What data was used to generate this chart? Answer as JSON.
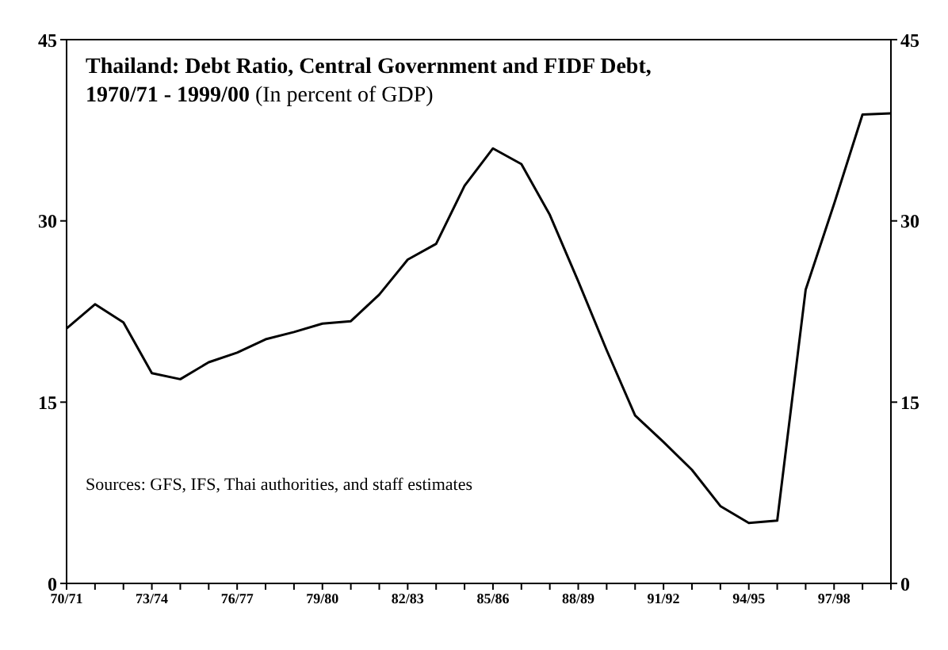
{
  "chart_data": {
    "type": "line",
    "title": "Thailand: Debt Ratio, Central Government and FIDF Debt, 1970/71 - 1999/00",
    "subtitle": "(In percent of GDP)",
    "annotations": [
      "Sources: GFS, IFS, Thai authorities, and staff estimates"
    ],
    "categories": [
      "70/71",
      null,
      null,
      "73/74",
      null,
      null,
      "76/77",
      null,
      null,
      "79/80",
      null,
      null,
      "82/83",
      null,
      null,
      "85/86",
      null,
      null,
      "88/89",
      null,
      null,
      "91/92",
      null,
      null,
      "94/95",
      null,
      null,
      "97/98",
      null,
      null
    ],
    "series": [
      {
        "color": "#000000",
        "values": [
          21.1,
          23.1,
          21.6,
          17.4,
          16.9,
          18.3,
          19.1,
          20.2,
          20.8,
          21.5,
          21.7,
          23.9,
          26.8,
          28.1,
          32.9,
          36.0,
          34.7,
          30.5,
          25.0,
          19.3,
          13.9,
          11.7,
          9.4,
          6.4,
          5.0,
          5.2,
          24.3,
          31.4,
          38.8,
          38.9
        ]
      }
    ],
    "ylim": [
      0,
      45
    ],
    "yticks": [
      0,
      15,
      30,
      45
    ],
    "y2lim": [
      0,
      45
    ],
    "y2ticks": [
      0,
      15,
      30,
      45
    ],
    "grid": false,
    "legend": false,
    "marker": "none",
    "line_style": "solid"
  }
}
